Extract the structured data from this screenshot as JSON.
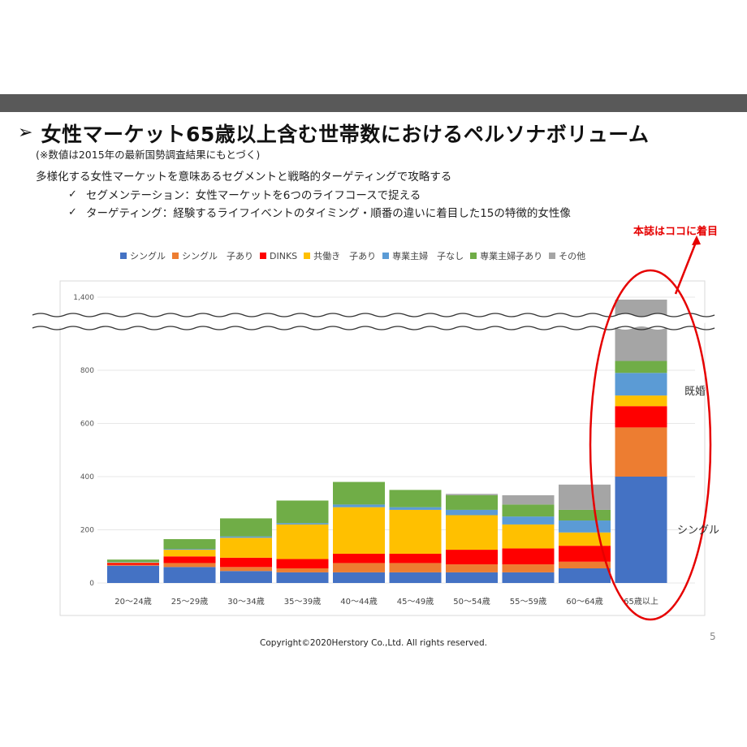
{
  "header": {
    "title": "女性マーケット65歳以上含む世帯数におけるペルソナボリューム",
    "note": "(※数値は2015年の最新国勢調査結果にもとづく)",
    "description": "多様化する女性マーケットを意味あるセグメントと戦略的ターゲティングで攻略する",
    "bullets": [
      {
        "check": "✓",
        "text": "セグメンテーション：女性マーケットを6つのライフコースで捉える"
      },
      {
        "check": "✓",
        "text": "ターゲティング：経験するライフイベントのタイミング・順番の違いに着目した15の特徴的女性像"
      }
    ]
  },
  "callout": "本誌はココに着目",
  "annotations": {
    "married": "既婚",
    "single": "シングル"
  },
  "footer": "Copyright©2020Herstory Co.,Ltd. All rights reserved.",
  "page_number": "5",
  "colors": {
    "bar_top_wave": "#888888",
    "callout": "#e60000"
  },
  "chart_data": {
    "type": "bar",
    "stacked": true,
    "categories": [
      "20～24歳",
      "25～29歳",
      "30～34歳",
      "35～39歳",
      "40～44歳",
      "45～49歳",
      "50～54歳",
      "55～59歳",
      "60～64歳",
      "65歳以上"
    ],
    "y_ticks": [
      "0",
      "200",
      "400",
      "600",
      "800",
      "1,400"
    ],
    "y_axis_break": true,
    "series": [
      {
        "name": "シングル",
        "color": "#4472c4",
        "values": [
          65,
          60,
          45,
          40,
          40,
          40,
          40,
          40,
          55,
          400
        ]
      },
      {
        "name": "シングル　子あり",
        "color": "#ed7d31",
        "values": [
          3,
          15,
          15,
          15,
          35,
          35,
          30,
          30,
          25,
          185
        ]
      },
      {
        "name": "DINKS",
        "color": "#ff0000",
        "values": [
          7,
          25,
          35,
          35,
          35,
          35,
          55,
          60,
          60,
          80
        ]
      },
      {
        "name": "共働き　子あり",
        "color": "#ffc000",
        "values": [
          2,
          25,
          75,
          130,
          175,
          165,
          130,
          90,
          50,
          40
        ]
      },
      {
        "name": "専業主婦　子なし",
        "color": "#5b9bd5",
        "values": [
          2,
          3,
          5,
          5,
          10,
          10,
          20,
          30,
          45,
          85
        ]
      },
      {
        "name": "専業主婦子あり",
        "color": "#70ad47",
        "values": [
          9,
          37,
          68,
          85,
          85,
          65,
          55,
          45,
          40,
          45
        ]
      },
      {
        "name": "その他",
        "color": "#a5a5a5",
        "values": [
          0,
          0,
          0,
          0,
          0,
          0,
          5,
          35,
          95,
          535
        ]
      }
    ]
  }
}
